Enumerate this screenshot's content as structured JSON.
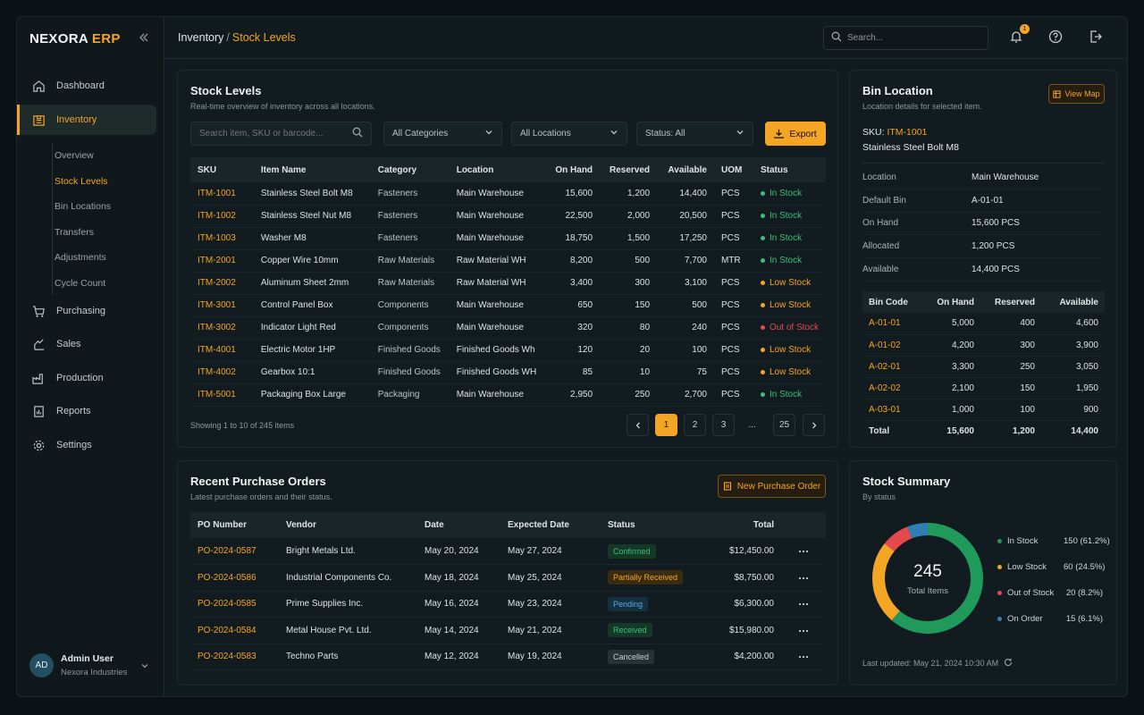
{
  "app": {
    "logo_main": "NEXORA",
    "logo_accent": "ERP"
  },
  "sidebar": {
    "items": [
      {
        "label": "Dashboard",
        "icon": "home-icon"
      },
      {
        "label": "Inventory",
        "icon": "inventory-icon"
      },
      {
        "label": "Purchasing",
        "icon": "cart-icon"
      },
      {
        "label": "Sales",
        "icon": "sales-icon"
      },
      {
        "label": "Production",
        "icon": "factory-icon"
      },
      {
        "label": "Reports",
        "icon": "report-icon"
      },
      {
        "label": "Settings",
        "icon": "gear-icon"
      }
    ],
    "inventory_sub": [
      "Overview",
      "Stock Levels",
      "Bin Locations",
      "Transfers",
      "Adjustments",
      "Cycle Count"
    ],
    "user": {
      "initials": "AD",
      "name": "Admin User",
      "org": "Nexora Industries"
    }
  },
  "header": {
    "crumb_root": "Inventory",
    "crumb_sep": "/",
    "crumb_current": "Stock Levels",
    "search_placeholder": "Search...",
    "notif_count": "1"
  },
  "stock": {
    "title": "Stock Levels",
    "subtitle": "Real-time overview of inventory across all locations.",
    "search_placeholder": "Search item, SKU or barcode...",
    "filter_category": "All Categories",
    "filter_location": "All Locations",
    "filter_status": "Status: All",
    "export_label": "Export",
    "columns": [
      "SKU",
      "Item Name",
      "Category",
      "Location",
      "On Hand",
      "Reserved",
      "Available",
      "UOM",
      "Status"
    ],
    "rows": [
      {
        "sku": "ITM-1001",
        "name": "Stainless Steel Bolt M8",
        "category": "Fasteners",
        "location": "Main Warehouse",
        "on_hand": "15,600",
        "reserved": "1,200",
        "available": "14,400",
        "uom": "PCS",
        "status": "In Stock",
        "status_color": "#3bbf78"
      },
      {
        "sku": "ITM-1002",
        "name": "Stainless Steel Nut M8",
        "category": "Fasteners",
        "location": "Main Warehouse",
        "on_hand": "22,500",
        "reserved": "2,000",
        "available": "20,500",
        "uom": "PCS",
        "status": "In Stock",
        "status_color": "#3bbf78"
      },
      {
        "sku": "ITM-1003",
        "name": "Washer M8",
        "category": "Fasteners",
        "location": "Main Warehouse",
        "on_hand": "18,750",
        "reserved": "1,500",
        "available": "17,250",
        "uom": "PCS",
        "status": "In Stock",
        "status_color": "#3bbf78"
      },
      {
        "sku": "ITM-2001",
        "name": "Copper Wire 10mm",
        "category": "Raw Materials",
        "location": "Raw Material WH",
        "on_hand": "8,200",
        "reserved": "500",
        "available": "7,700",
        "uom": "MTR",
        "status": "In Stock",
        "status_color": "#3bbf78"
      },
      {
        "sku": "ITM-2002",
        "name": "Aluminum Sheet 2mm",
        "category": "Raw Materials",
        "location": "Raw Material WH",
        "on_hand": "3,400",
        "reserved": "300",
        "available": "3,100",
        "uom": "PCS",
        "status": "Low Stock",
        "status_color": "#f5a524"
      },
      {
        "sku": "ITM-3001",
        "name": "Control Panel Box",
        "category": "Components",
        "location": "Main Warehouse",
        "on_hand": "650",
        "reserved": "150",
        "available": "500",
        "uom": "PCS",
        "status": "Low Stock",
        "status_color": "#f5a524"
      },
      {
        "sku": "ITM-3002",
        "name": "Indicator Light Red",
        "category": "Components",
        "location": "Main Warehouse",
        "on_hand": "320",
        "reserved": "80",
        "available": "240",
        "uom": "PCS",
        "status": "Out of Stock",
        "status_color": "#e5484d"
      },
      {
        "sku": "ITM-4001",
        "name": "Electric Motor 1HP",
        "category": "Finished Goods",
        "location": "Finished Goods Wh",
        "on_hand": "120",
        "reserved": "20",
        "available": "100",
        "uom": "PCS",
        "status": "Low Stock",
        "status_color": "#f5a524"
      },
      {
        "sku": "ITM-4002",
        "name": "Gearbox 10:1",
        "category": "Finished Goods",
        "location": "Finished Goods WH",
        "on_hand": "85",
        "reserved": "10",
        "available": "75",
        "uom": "PCS",
        "status": "Low Stock",
        "status_color": "#f5a524"
      },
      {
        "sku": "ITM-5001",
        "name": "Packaging Box Large",
        "category": "Packaging",
        "location": "Main Warehouse",
        "on_hand": "2,950",
        "reserved": "250",
        "available": "2,700",
        "uom": "PCS",
        "status": "In Stock",
        "status_color": "#3bbf78"
      }
    ],
    "showing": "Showing 1 to 10 of 245 items",
    "pages": [
      "1",
      "2",
      "3",
      "...",
      "25"
    ],
    "current_page": "1"
  },
  "bin": {
    "title": "Bin Location",
    "subtitle": "Location details for selected item.",
    "view_map": "View Map",
    "sku_label": "SKU:",
    "sku": "ITM-1001",
    "item": "Stainless Steel Bolt M8",
    "details": [
      {
        "k": "Location",
        "v": "Main Warehouse"
      },
      {
        "k": "Default Bin",
        "v": "A-01-01"
      },
      {
        "k": "On Hand",
        "v": "15,600 PCS"
      },
      {
        "k": "Allocated",
        "v": "1,200 PCS"
      },
      {
        "k": "Available",
        "v": "14,400 PCS"
      }
    ],
    "columns": [
      "Bin Code",
      "On Hand",
      "Reserved",
      "Available"
    ],
    "rows": [
      {
        "code": "A-01-01",
        "on_hand": "5,000",
        "reserved": "400",
        "available": "4,600"
      },
      {
        "code": "A-01-02",
        "on_hand": "4,200",
        "reserved": "300",
        "available": "3,900"
      },
      {
        "code": "A-02-01",
        "on_hand": "3,300",
        "reserved": "250",
        "available": "3,050"
      },
      {
        "code": "A-02-02",
        "on_hand": "2,100",
        "reserved": "150",
        "available": "1,950"
      },
      {
        "code": "A-03-01",
        "on_hand": "1,000",
        "reserved": "100",
        "available": "900"
      }
    ],
    "total": {
      "label": "Total",
      "on_hand": "15,600",
      "reserved": "1,200",
      "available": "14,400"
    }
  },
  "po": {
    "title": "Recent Purchase Orders",
    "subtitle": "Latest purchase orders and their status.",
    "new_label": "New Purchase Order",
    "columns": [
      "PO Number",
      "Vendor",
      "Date",
      "Expected Date",
      "Status",
      "Total"
    ],
    "rows": [
      {
        "number": "PO-2024-0587",
        "vendor": "Bright Metals Ltd.",
        "date": "May 20, 2024",
        "expected": "May 27, 2024",
        "status": "Confirmed",
        "fg": "#3bbf78",
        "bg": "#143a27",
        "total": "$12,450.00"
      },
      {
        "number": "PO-2024-0586",
        "vendor": "Industrial Components Co.",
        "date": "May 18, 2024",
        "expected": "May 25, 2024",
        "status": "Partially Received",
        "fg": "#f5a524",
        "bg": "#3a2c10",
        "total": "$8,750.00"
      },
      {
        "number": "PO-2024-0585",
        "vendor": "Prime Supplies Inc.",
        "date": "May 16, 2024",
        "expected": "May 23, 2024",
        "status": "Pending",
        "fg": "#5aa9e6",
        "bg": "#15303f",
        "total": "$6,300.00"
      },
      {
        "number": "PO-2024-0584",
        "vendor": "Metal House Pvt. Ltd.",
        "date": "May 14, 2024",
        "expected": "May 21, 2024",
        "status": "Received",
        "fg": "#3bbf78",
        "bg": "#143a27",
        "total": "$15,980.00"
      },
      {
        "number": "PO-2024-0583",
        "vendor": "Techno Parts",
        "date": "May 12, 2024",
        "expected": "May 19, 2024",
        "status": "Cancelled",
        "fg": "#c9d0d3",
        "bg": "#263236",
        "total": "$4,200.00"
      }
    ]
  },
  "summary": {
    "title": "Stock Summary",
    "subtitle": "By status",
    "center_value": "245",
    "center_label": "Total Items",
    "updated": "Last updated: May 21, 2024 10:30 AM"
  },
  "chart_data": {
    "type": "pie",
    "title": "Stock Summary",
    "series": [
      {
        "name": "In Stock",
        "value": 150,
        "label": "150 (61.2%)",
        "color": "#1f9a5a"
      },
      {
        "name": "Low Stock",
        "value": 60,
        "label": "60 (24.5%)",
        "color": "#f5a524"
      },
      {
        "name": "Out of Stock",
        "value": 20,
        "label": "20 (8.2%)",
        "color": "#e5484d"
      },
      {
        "name": "On Order",
        "value": 15,
        "label": "15 (6.1%)",
        "color": "#2f7fb5"
      }
    ]
  }
}
